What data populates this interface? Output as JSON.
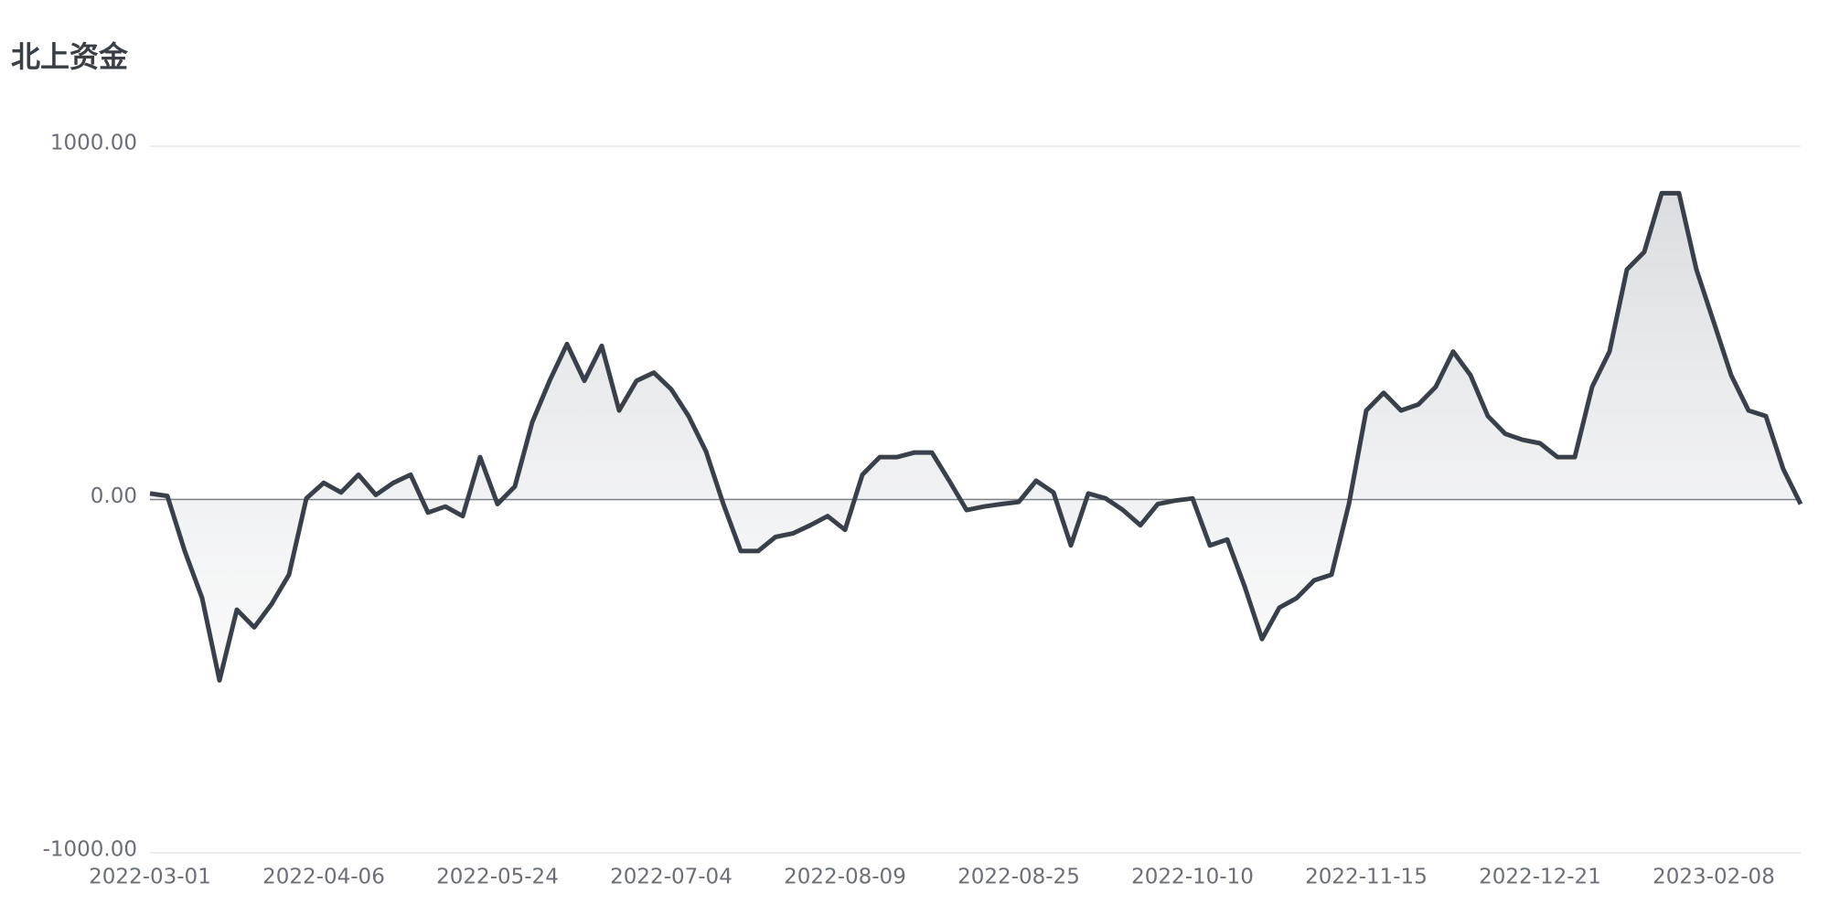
{
  "chart_data": {
    "type": "area",
    "title": "北上资金",
    "categories": [
      "2022-03-01",
      null,
      null,
      null,
      null,
      null,
      null,
      null,
      null,
      null,
      "2022-04-06",
      null,
      null,
      null,
      null,
      null,
      null,
      null,
      null,
      null,
      "2022-05-24",
      null,
      null,
      null,
      null,
      null,
      null,
      null,
      null,
      null,
      "2022-07-04",
      null,
      null,
      null,
      null,
      null,
      null,
      null,
      null,
      null,
      "2022-08-09",
      null,
      null,
      null,
      null,
      null,
      null,
      null,
      null,
      null,
      "2022-08-25",
      null,
      null,
      null,
      null,
      null,
      null,
      null,
      null,
      null,
      "2022-10-10",
      null,
      null,
      null,
      null,
      null,
      null,
      null,
      null,
      null,
      "2022-11-15",
      null,
      null,
      null,
      null,
      null,
      null,
      null,
      null,
      null,
      "2022-12-21",
      null,
      null,
      null,
      null,
      null,
      null,
      null,
      null,
      null,
      "2023-02-08",
      null,
      null,
      null,
      null,
      null
    ],
    "values": [
      17,
      10,
      -146,
      -279,
      -512,
      -312,
      -362,
      -296,
      -213,
      3,
      47,
      20,
      70,
      13,
      47,
      70,
      -37,
      -20,
      -47,
      120,
      -13,
      37,
      219,
      336,
      440,
      336,
      435,
      252,
      336,
      359,
      312,
      236,
      136,
      -13,
      -146,
      -146,
      -106,
      -96,
      -73,
      -47,
      -86,
      70,
      120,
      120,
      133,
      133,
      53,
      -30,
      -20,
      -13,
      -7,
      53,
      20,
      -130,
      17,
      3,
      -30,
      -73,
      -13,
      -3,
      3,
      -130,
      -113,
      -246,
      -395,
      -306,
      -279,
      -229,
      -213,
      -13,
      252,
      302,
      252,
      269,
      319,
      419,
      352,
      236,
      186,
      169,
      159,
      120,
      120,
      319,
      419,
      651,
      701,
      867,
      867,
      651,
      502,
      352,
      252,
      236,
      86,
      -13
    ],
    "color": "#3a4049",
    "ylim": [
      -1000,
      1000
    ],
    "yticks": [
      {
        "value": -1000,
        "label": "-1000.00"
      },
      {
        "value": 0,
        "label": "0.00"
      },
      {
        "value": 1000,
        "label": "1000.00"
      }
    ],
    "grid": true
  }
}
